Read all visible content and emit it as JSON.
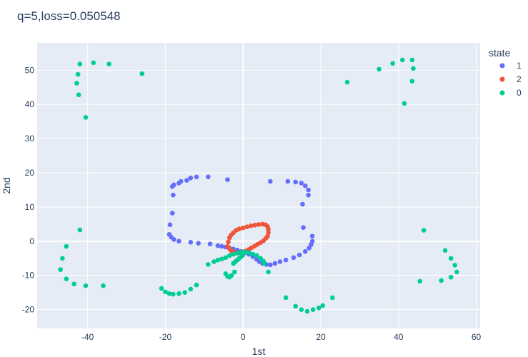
{
  "chart_data": {
    "type": "scatter",
    "title": "q=5,loss=0.050548",
    "xlabel": "1st",
    "ylabel": "2nd",
    "xlim": [
      -53,
      61
    ],
    "ylim": [
      -25.5,
      58
    ],
    "x_ticks": [
      -40,
      -20,
      0,
      20,
      40,
      60
    ],
    "y_ticks": [
      -20,
      -10,
      0,
      10,
      20,
      30,
      40,
      50
    ],
    "grid": true,
    "legend": {
      "title": "state",
      "placement": "right"
    },
    "colors": {
      "1": "#636efa",
      "2": "#ef553b",
      "0": "#00cc96",
      "plot_bg": "#e5ecf6",
      "grid": "#ffffff",
      "text": "#2a3f5f"
    },
    "series": [
      {
        "name": "1",
        "points": [
          [
            -9,
            18.8
          ],
          [
            -12,
            18.8
          ],
          [
            -13.5,
            18.5
          ],
          [
            -14.5,
            17.8
          ],
          [
            -16,
            17.5
          ],
          [
            -16.5,
            17
          ],
          [
            -17.8,
            16.5
          ],
          [
            -18.2,
            16
          ],
          [
            -18,
            13.5
          ],
          [
            -18.2,
            8.2
          ],
          [
            -18.8,
            4.8
          ],
          [
            -19,
            2
          ],
          [
            -18.5,
            1.2
          ],
          [
            -17.8,
            0.5
          ],
          [
            -16.5,
            0
          ],
          [
            -13.5,
            -0.3
          ],
          [
            -11.5,
            -0.6
          ],
          [
            -8.5,
            -0.8
          ],
          [
            -6.5,
            -1.3
          ],
          [
            -5.5,
            -1.5
          ],
          [
            -4.5,
            -1.7
          ],
          [
            -3.5,
            -2
          ],
          [
            -2.5,
            -2.3
          ],
          [
            -1.5,
            -2.6
          ],
          [
            -0.5,
            -3
          ],
          [
            0.5,
            -3.3
          ],
          [
            1.5,
            -3.8
          ],
          [
            2.5,
            -4.5
          ],
          [
            3.5,
            -5.3
          ],
          [
            4.2,
            -6
          ],
          [
            5,
            -6.5
          ],
          [
            6,
            -6.8
          ],
          [
            7,
            -6.9
          ],
          [
            8.2,
            -6.5
          ],
          [
            9.5,
            -6
          ],
          [
            11,
            -5.5
          ],
          [
            13,
            -4.8
          ],
          [
            14.5,
            -4
          ],
          [
            16,
            -3
          ],
          [
            17,
            -2
          ],
          [
            17.5,
            -1
          ],
          [
            17.8,
            0
          ],
          [
            17.8,
            1.5
          ],
          [
            15.5,
            4
          ],
          [
            15.3,
            10.8
          ],
          [
            16.8,
            13.5
          ],
          [
            16.8,
            15
          ],
          [
            16,
            16.2
          ],
          [
            15,
            17
          ],
          [
            13.5,
            17.3
          ],
          [
            11.5,
            17.5
          ],
          [
            7,
            17.5
          ],
          [
            -4,
            18
          ]
        ]
      },
      {
        "name": "2",
        "points": [
          [
            -4,
            -1.5
          ],
          [
            -3.8,
            -0.2
          ],
          [
            -3.5,
            1
          ],
          [
            -3.1,
            1.8
          ],
          [
            -2.5,
            2.5
          ],
          [
            -1.8,
            3.2
          ],
          [
            -1,
            3.6
          ],
          [
            0,
            3.9
          ],
          [
            1,
            4.2
          ],
          [
            2,
            4.5
          ],
          [
            3,
            4.7
          ],
          [
            4,
            4.9
          ],
          [
            5,
            5
          ],
          [
            5.8,
            4.8
          ],
          [
            6.3,
            4.3
          ],
          [
            6.5,
            3.5
          ],
          [
            6.5,
            2.5
          ],
          [
            6.3,
            1.5
          ],
          [
            5.8,
            0.8
          ],
          [
            5.2,
            0.1
          ],
          [
            4.5,
            -0.4
          ],
          [
            3.7,
            -0.9
          ],
          [
            3,
            -1.4
          ],
          [
            2.2,
            -1.9
          ],
          [
            1.5,
            -2.4
          ],
          [
            0.8,
            -2.8
          ],
          [
            0,
            -3.1
          ],
          [
            -0.8,
            -3.3
          ],
          [
            -1.6,
            -3.4
          ],
          [
            -2.4,
            -3.2
          ],
          [
            -3,
            -2.8
          ],
          [
            -3.5,
            -2.2
          ]
        ]
      },
      {
        "name": "0",
        "points": [
          [
            -42,
            51.8
          ],
          [
            -38.5,
            52.2
          ],
          [
            -34.5,
            51.8
          ],
          [
            -42.5,
            48.8
          ],
          [
            -42.8,
            46.2
          ],
          [
            -42.3,
            42.8
          ],
          [
            -40.5,
            36.2
          ],
          [
            -26,
            49
          ],
          [
            35,
            50.3
          ],
          [
            38.5,
            52
          ],
          [
            41,
            53
          ],
          [
            43.5,
            53
          ],
          [
            43.8,
            50.5
          ],
          [
            43.5,
            46.8
          ],
          [
            41.5,
            40.3
          ],
          [
            26.8,
            46.5
          ],
          [
            -42,
            3.3
          ],
          [
            -45.5,
            -1.5
          ],
          [
            -46.5,
            -5
          ],
          [
            -47,
            -8.3
          ],
          [
            -45.5,
            -11
          ],
          [
            -43.5,
            -12.5
          ],
          [
            -40.5,
            -13
          ],
          [
            -36,
            -13
          ],
          [
            -21,
            -13.8
          ],
          [
            -20,
            -14.8
          ],
          [
            -19,
            -15.3
          ],
          [
            -18,
            -15.5
          ],
          [
            -16.5,
            -15.3
          ],
          [
            -15,
            -15
          ],
          [
            -13.5,
            -14
          ],
          [
            -12,
            -12.8
          ],
          [
            -9,
            -6.8
          ],
          [
            -7.5,
            -6
          ],
          [
            -6.5,
            -5.5
          ],
          [
            -5.5,
            -5.2
          ],
          [
            -4.5,
            -4.8
          ],
          [
            -3.5,
            -4.2
          ],
          [
            -2.5,
            -3.8
          ],
          [
            -1.5,
            -3.5
          ],
          [
            -0.5,
            -3.2
          ],
          [
            0.5,
            -3.1
          ],
          [
            1.5,
            -3.3
          ],
          [
            2.5,
            -3.8
          ],
          [
            3.5,
            -4.2
          ],
          [
            4.5,
            -5
          ],
          [
            5.2,
            -5.8
          ],
          [
            5.5,
            -6.5
          ],
          [
            -2.5,
            -6.5
          ],
          [
            -2,
            -6
          ],
          [
            -1.5,
            -5.5
          ],
          [
            -1,
            -5
          ],
          [
            -0.5,
            -4.5
          ],
          [
            0,
            -4
          ],
          [
            -4.5,
            -9.5
          ],
          [
            -4,
            -10.3
          ],
          [
            -3.5,
            -10.5
          ],
          [
            -3,
            -10
          ],
          [
            -2.2,
            -9
          ],
          [
            6.5,
            -9
          ],
          [
            11,
            -16.5
          ],
          [
            13.5,
            -19
          ],
          [
            15,
            -20
          ],
          [
            16.5,
            -20.5
          ],
          [
            18,
            -20
          ],
          [
            19.5,
            -19.5
          ],
          [
            20.5,
            -18.8
          ],
          [
            23,
            -16.5
          ],
          [
            46.5,
            3.2
          ],
          [
            52,
            -2.7
          ],
          [
            53.5,
            -5
          ],
          [
            54.5,
            -7
          ],
          [
            55,
            -9
          ],
          [
            53.5,
            -10.5
          ],
          [
            51,
            -11.5
          ],
          [
            45.5,
            -11.7
          ]
        ]
      }
    ]
  }
}
